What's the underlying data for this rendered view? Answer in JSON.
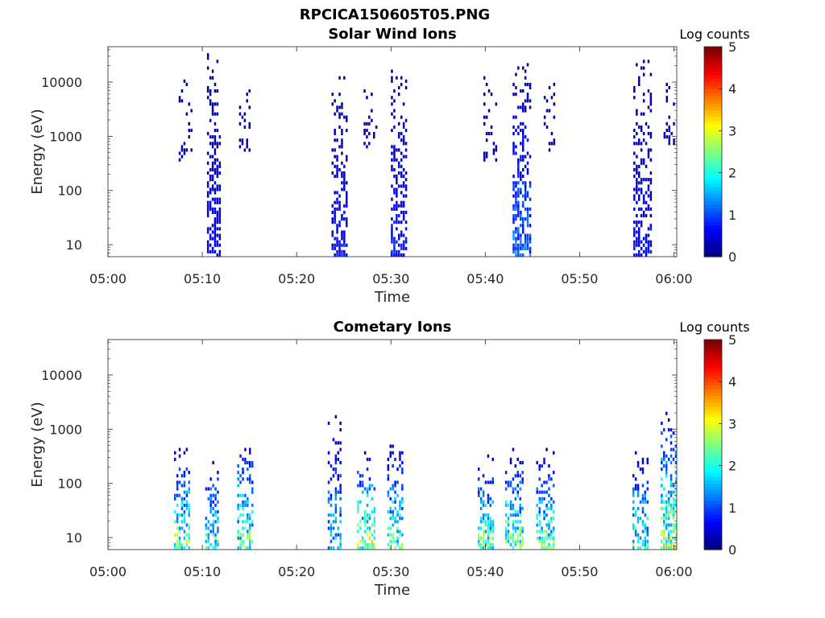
{
  "figure_title": "RPCICA150605T05.PNG",
  "chart_data": [
    {
      "type": "heatmap",
      "title": "Solar Wind Ions",
      "xlabel": "Time",
      "ylabel": "Energy (eV)",
      "x_ticks": [
        "05:00",
        "05:10",
        "05:20",
        "05:30",
        "05:40",
        "05:50",
        "06:00"
      ],
      "x_range": [
        "05:00",
        "06:00"
      ],
      "y_ticks": [
        "10",
        "100",
        "1000",
        "10000"
      ],
      "y_scale": "log",
      "y_range": [
        6,
        45000
      ],
      "colorbar": {
        "label": "Log counts",
        "ticks": [
          "0",
          "1",
          "2",
          "3",
          "4",
          "5"
        ],
        "range": [
          0,
          5
        ],
        "colormap": "jet"
      },
      "bursts": [
        {
          "time_min": 8.2,
          "width_min": 1.4,
          "emin": 300,
          "emax": 18000,
          "level": 0.3,
          "density": 0.25
        },
        {
          "time_min": 11.2,
          "width_min": 1.4,
          "emin": 6,
          "emax": 30000,
          "level": 0.6,
          "density": 0.55
        },
        {
          "time_min": 14.5,
          "width_min": 1.2,
          "emin": 400,
          "emax": 9000,
          "level": 0.3,
          "density": 0.3
        },
        {
          "time_min": 24.5,
          "width_min": 1.6,
          "emin": 6,
          "emax": 12000,
          "level": 0.7,
          "density": 0.55
        },
        {
          "time_min": 27.8,
          "width_min": 1.4,
          "emin": 500,
          "emax": 7000,
          "level": 0.3,
          "density": 0.3
        },
        {
          "time_min": 30.8,
          "width_min": 1.6,
          "emin": 6,
          "emax": 15000,
          "level": 0.7,
          "density": 0.55
        },
        {
          "time_min": 40.5,
          "width_min": 1.4,
          "emin": 300,
          "emax": 12000,
          "level": 0.3,
          "density": 0.25
        },
        {
          "time_min": 43.8,
          "width_min": 1.8,
          "emin": 6,
          "emax": 25000,
          "level": 1.2,
          "density": 0.6
        },
        {
          "time_min": 46.8,
          "width_min": 1.2,
          "emin": 500,
          "emax": 12000,
          "level": 0.3,
          "density": 0.25
        },
        {
          "time_min": 56.6,
          "width_min": 1.8,
          "emin": 6,
          "emax": 25000,
          "level": 0.6,
          "density": 0.55
        },
        {
          "time_min": 59.5,
          "width_min": 1.2,
          "emin": 600,
          "emax": 9000,
          "level": 0.3,
          "density": 0.3
        }
      ]
    },
    {
      "type": "heatmap",
      "title": "Cometary Ions",
      "xlabel": "Time",
      "ylabel": "Energy (eV)",
      "x_ticks": [
        "05:00",
        "05:10",
        "05:20",
        "05:30",
        "05:40",
        "05:50",
        "06:00"
      ],
      "x_range": [
        "05:00",
        "06:00"
      ],
      "y_ticks": [
        "10",
        "100",
        "1000",
        "10000"
      ],
      "y_scale": "log",
      "y_range": [
        6,
        45000
      ],
      "colorbar": {
        "label": "Log counts",
        "ticks": [
          "0",
          "1",
          "2",
          "3",
          "4",
          "5"
        ],
        "range": [
          0,
          5
        ],
        "colormap": "jet"
      },
      "bursts": [
        {
          "time_min": 7.8,
          "width_min": 1.6,
          "emin": 6,
          "emax": 500,
          "level": 2.6,
          "density": 0.6
        },
        {
          "time_min": 11.0,
          "width_min": 1.4,
          "emin": 6,
          "emax": 300,
          "level": 2.2,
          "density": 0.55
        },
        {
          "time_min": 14.5,
          "width_min": 1.6,
          "emin": 6,
          "emax": 800,
          "level": 2.4,
          "density": 0.55
        },
        {
          "time_min": 24.0,
          "width_min": 1.4,
          "emin": 6,
          "emax": 2000,
          "level": 1.6,
          "density": 0.5
        },
        {
          "time_min": 27.3,
          "width_min": 1.8,
          "emin": 6,
          "emax": 400,
          "level": 2.8,
          "density": 0.6
        },
        {
          "time_min": 30.4,
          "width_min": 1.6,
          "emin": 6,
          "emax": 600,
          "level": 2.3,
          "density": 0.55
        },
        {
          "time_min": 40.0,
          "width_min": 1.6,
          "emin": 6,
          "emax": 300,
          "level": 2.5,
          "density": 0.6
        },
        {
          "time_min": 43.0,
          "width_min": 1.8,
          "emin": 6,
          "emax": 400,
          "level": 2.6,
          "density": 0.6
        },
        {
          "time_min": 46.3,
          "width_min": 1.8,
          "emin": 6,
          "emax": 500,
          "level": 2.3,
          "density": 0.55
        },
        {
          "time_min": 56.4,
          "width_min": 1.6,
          "emin": 6,
          "emax": 400,
          "level": 2.2,
          "density": 0.55
        },
        {
          "time_min": 59.4,
          "width_min": 1.6,
          "emin": 6,
          "emax": 3000,
          "level": 2.7,
          "density": 0.6
        }
      ]
    }
  ]
}
